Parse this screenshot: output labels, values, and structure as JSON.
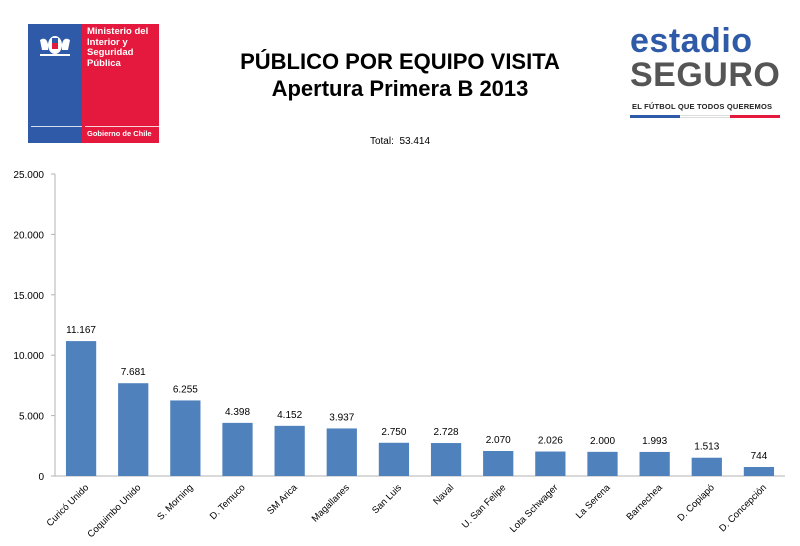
{
  "header": {
    "gov_logo": {
      "name": "Ministerio del\nInterior y\nSeguridad\nPública",
      "subtitle": "Gobierno de Chile"
    },
    "title_line1": "PÚBLICO POR EQUIPO VISITA",
    "title_line2": "Apertura Primera B 2013",
    "brand_logo": {
      "word1": "estadio",
      "word2": "SEGURO",
      "tagline": "EL FÚTBOL QUE TODOS QUEREMOS"
    },
    "total_label": "Total:",
    "total_value": "53.414"
  },
  "colors": {
    "bar": "#4f81bd",
    "axis": "#b3b3b3",
    "brand_blue": "#2f5aa8",
    "brand_red": "#e5193d"
  },
  "chart_data": {
    "type": "bar",
    "title": "PÚBLICO POR EQUIPO VISITA",
    "subtitle": "Apertura Primera B 2013",
    "categories": [
      "Curicó Unido",
      "Coquimbo Unido",
      "S. Morning",
      "D. Temuco",
      "SM Arica",
      "Magallanes",
      "San Luis",
      "Naval",
      "U. San Felipe",
      "Lota Schwager",
      "La Serena",
      "Barnechea",
      "D. Copiapó",
      "D. Concepción"
    ],
    "values": [
      11167,
      7681,
      6255,
      4398,
      4152,
      3937,
      2750,
      2728,
      2070,
      2026,
      2000,
      1993,
      1513,
      744
    ],
    "value_labels": [
      "11.167",
      "7.681",
      "6.255",
      "4.398",
      "4.152",
      "3.937",
      "2.750",
      "2.728",
      "2.070",
      "2.026",
      "2.000",
      "1.993",
      "1.513",
      "744"
    ],
    "ylim": [
      0,
      25000
    ],
    "y_ticks": [
      0,
      5000,
      10000,
      15000,
      20000,
      25000
    ],
    "y_tick_labels": [
      "0",
      "5.000",
      "10.000",
      "15.000",
      "20.000",
      "25.000"
    ],
    "xlabel": "",
    "ylabel": "",
    "grid": false,
    "legend": "none"
  }
}
